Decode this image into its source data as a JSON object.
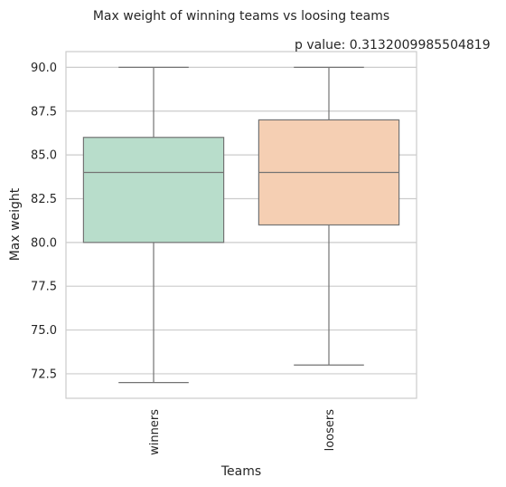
{
  "chart_data": {
    "type": "box",
    "title": "Max weight of winning teams vs loosing teams",
    "annotation": "p value: 0.3132009985504819",
    "xlabel": "Teams",
    "ylabel": "Max weight",
    "categories": [
      "winners",
      "loosers"
    ],
    "boxes": [
      {
        "category": "winners",
        "whisker_low": 72,
        "q1": 80,
        "median": 84,
        "q3": 86,
        "whisker_high": 90,
        "color": "#b8ddcb"
      },
      {
        "category": "loosers",
        "whisker_low": 73,
        "q1": 81,
        "median": 84,
        "q3": 87,
        "whisker_high": 90,
        "color": "#f5cfb3"
      }
    ],
    "ylim": [
      71.1,
      90.9
    ],
    "yticks": [
      72.5,
      75.0,
      77.5,
      80.0,
      82.5,
      85.0,
      87.5,
      90.0
    ],
    "ytick_labels": [
      "72.5",
      "75.0",
      "77.5",
      "80.0",
      "82.5",
      "85.0",
      "87.5",
      "90.0"
    ],
    "grid": "horizontal",
    "colors": {
      "frame": "#cccccc",
      "grid": "#cccccc",
      "box_edge": "#737373",
      "text": "#262626"
    }
  }
}
